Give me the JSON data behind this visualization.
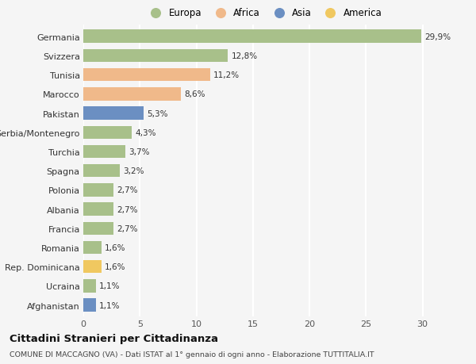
{
  "countries": [
    "Germania",
    "Svizzera",
    "Tunisia",
    "Marocco",
    "Pakistan",
    "Serbia/Montenegro",
    "Turchia",
    "Spagna",
    "Polonia",
    "Albania",
    "Francia",
    "Romania",
    "Rep. Dominicana",
    "Ucraina",
    "Afghanistan"
  ],
  "values": [
    29.9,
    12.8,
    11.2,
    8.6,
    5.3,
    4.3,
    3.7,
    3.2,
    2.7,
    2.7,
    2.7,
    1.6,
    1.6,
    1.1,
    1.1
  ],
  "labels": [
    "29,9%",
    "12,8%",
    "11,2%",
    "8,6%",
    "5,3%",
    "4,3%",
    "3,7%",
    "3,2%",
    "2,7%",
    "2,7%",
    "2,7%",
    "1,6%",
    "1,6%",
    "1,1%",
    "1,1%"
  ],
  "continents": [
    "Europa",
    "Europa",
    "Africa",
    "Africa",
    "Asia",
    "Europa",
    "Europa",
    "Europa",
    "Europa",
    "Europa",
    "Europa",
    "Europa",
    "America",
    "Europa",
    "Asia"
  ],
  "colors": {
    "Europa": "#a8c08a",
    "Africa": "#f0b98a",
    "Asia": "#6b8fc2",
    "America": "#f0c860"
  },
  "legend_order": [
    "Europa",
    "Africa",
    "Asia",
    "America"
  ],
  "title": "Cittadini Stranieri per Cittadinanza",
  "subtitle": "COMUNE DI MACCAGNO (VA) - Dati ISTAT al 1° gennaio di ogni anno - Elaborazione TUTTITALIA.IT",
  "xlim": [
    0,
    32
  ],
  "xticks": [
    0,
    5,
    10,
    15,
    20,
    25,
    30
  ],
  "bg_color": "#f5f5f5",
  "grid_color": "#ffffff"
}
